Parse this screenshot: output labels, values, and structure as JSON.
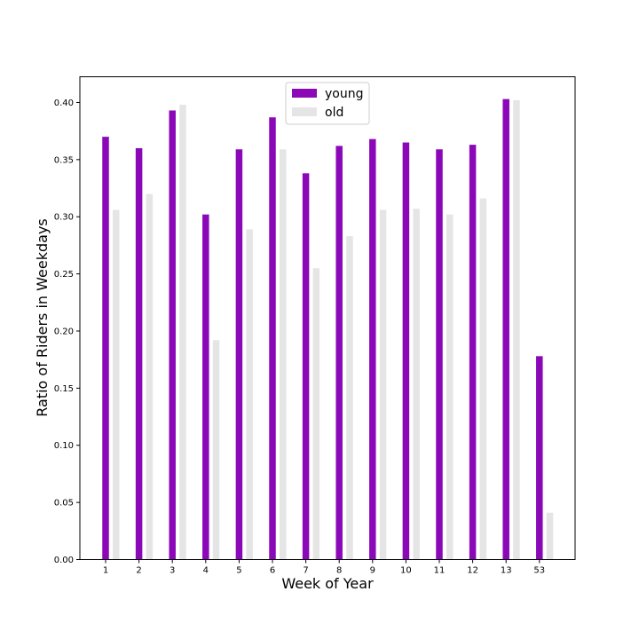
{
  "chart_data": {
    "type": "bar",
    "title": "",
    "xlabel": "Week of Year",
    "ylabel": "Ratio of Riders in Weekdays",
    "categories": [
      "1",
      "2",
      "3",
      "4",
      "5",
      "6",
      "7",
      "8",
      "9",
      "10",
      "11",
      "12",
      "13",
      "53"
    ],
    "series": [
      {
        "name": "young",
        "color": "#8b08b9",
        "values": [
          0.37,
          0.36,
          0.393,
          0.302,
          0.359,
          0.387,
          0.338,
          0.362,
          0.368,
          0.365,
          0.359,
          0.363,
          0.403,
          0.178
        ]
      },
      {
        "name": "old",
        "color": "#e5e5e5",
        "values": [
          0.306,
          0.32,
          0.398,
          0.192,
          0.289,
          0.359,
          0.255,
          0.283,
          0.306,
          0.307,
          0.302,
          0.316,
          0.402,
          0.041
        ]
      }
    ],
    "ylim": [
      0,
      0.4225
    ],
    "yticks": [
      "0.00",
      "0.05",
      "0.10",
      "0.15",
      "0.20",
      "0.25",
      "0.30",
      "0.35",
      "0.40"
    ],
    "legend_position": "top-center",
    "grid": false
  }
}
